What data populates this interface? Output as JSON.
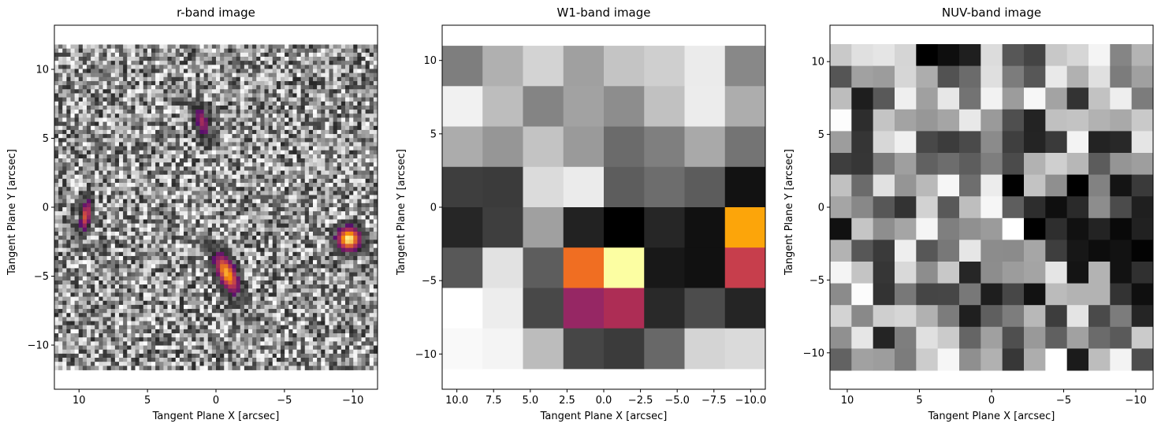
{
  "chart_data": [
    {
      "type": "heatmap",
      "title": "r-band image",
      "xlabel": "Tangent Plane X [arcsec]",
      "ylabel": "Tangent Plane Y [arcsec]",
      "x_ticks": [
        10,
        5,
        0,
        -5,
        -10
      ],
      "y_ticks": [
        10,
        5,
        0,
        -5,
        -10
      ],
      "xlim": [
        11.8,
        -11.8
      ],
      "ylim": [
        -13.2,
        13.2
      ],
      "image_extent": {
        "x": [
          11.8,
          -11.8
        ],
        "y": [
          -11.8,
          11.8
        ]
      },
      "grid": false,
      "background": "grayscale noise",
      "colormap_sources": "inferno",
      "sources": [
        {
          "x": 9.5,
          "y": -0.6,
          "label": "elongated source (left)"
        },
        {
          "x": 1.0,
          "y": 6.2,
          "label": "faint source (top)"
        },
        {
          "x": -0.8,
          "y": -4.8,
          "label": "elongated source (center)"
        },
        {
          "x": -9.7,
          "y": -2.3,
          "label": "bright compact source (right)"
        }
      ]
    },
    {
      "type": "heatmap",
      "title": "W1-band image",
      "xlabel": "Tangent Plane X [arcsec]",
      "ylabel": "Tangent Plane Y [arcsec]",
      "x_ticks": [
        "10.0",
        "7.5",
        "5.0",
        "2.5",
        "0.0",
        "−2.5",
        "−5.0",
        "−7.5",
        "−10.0"
      ],
      "y_ticks": [
        10,
        5,
        0,
        -5,
        -10
      ],
      "xlim": [
        11,
        -11
      ],
      "ylim": [
        -12.4,
        12.4
      ],
      "image_extent": {
        "x": [
          11,
          -11
        ],
        "y": [
          -11,
          11
        ]
      },
      "grid": false,
      "colors": [
        [
          "#7e7e7e",
          "#b0b0b0",
          "#d3d3d3",
          "#a0a0a0",
          "#c4c4c4",
          "#cfcfcf",
          "#ebebeb",
          "#888888"
        ],
        [
          "#f1f1f1",
          "#bdbdbd",
          "#848484",
          "#a2a2a2",
          "#8d8d8d",
          "#c1c1c1",
          "#ececec",
          "#adadad"
        ],
        [
          "#acacac",
          "#969696",
          "#c3c3c3",
          "#9a9a9a",
          "#6b6b6b",
          "#7f7f7f",
          "#a9a9a9",
          "#747474"
        ],
        [
          "#3e3e3e",
          "#3b3b3b",
          "#dbdbdb",
          "#ebebeb",
          "#5d5d5d",
          "#6d6d6d",
          "#5c5c5c",
          "#121212"
        ],
        [
          "#262626",
          "#3e3e3e",
          "#a0a0a0",
          "#222222",
          "#000000",
          "#262626",
          "#111111",
          "#fca50a"
        ],
        [
          "#585858",
          "#e2e2e2",
          "#5d5d5d",
          "#f06e22",
          "#fcfea2",
          "#181818",
          "#111111",
          "#c73e4c"
        ],
        [
          "#ffffff",
          "#ededed",
          "#484848",
          "#962764",
          "#ad2d55",
          "#292929",
          "#4c4c4c",
          "#252525"
        ],
        [
          "#f9f9f9",
          "#f4f4f4",
          "#bcbcbc",
          "#464646",
          "#3b3b3b",
          "#686868",
          "#d4d4d4",
          "#dadada"
        ]
      ]
    },
    {
      "type": "heatmap",
      "title": "NUV-band image",
      "xlabel": "Tangent Plane X [arcsec]",
      "ylabel": "Tangent Plane Y [arcsec]",
      "x_ticks": [
        10,
        5,
        0,
        -5,
        -10
      ],
      "y_ticks": [
        10,
        5,
        0,
        -5,
        -10
      ],
      "xlim": [
        11.2,
        -11.2
      ],
      "ylim": [
        -12.5,
        12.5
      ],
      "image_extent": {
        "x": [
          11.2,
          -11.2
        ],
        "y": [
          -11.2,
          11.2
        ]
      },
      "grid": false,
      "colors": [
        [
          "#c9c9c9",
          "#e0e0e0",
          "#e5e5e5",
          "#d5d5d5",
          "#000000",
          "#0e0e0e",
          "#1f1f1f",
          "#dcdcdc",
          "#575757",
          "#444444",
          "#c8c8c8",
          "#d6d6d6",
          "#f4f4f4",
          "#858585",
          "#b4b4b4"
        ],
        [
          "#555555",
          "#a1a1a1",
          "#9c9c9c",
          "#d6d6d6",
          "#adadad",
          "#525252",
          "#6b6b6b",
          "#dfdfdf",
          "#7c7c7c",
          "#575757",
          "#e9e9e9",
          "#b1b1b1",
          "#e0e0e0",
          "#7c7c7c",
          "#a0a0a0"
        ],
        [
          "#bdbdbd",
          "#1e1e1e",
          "#595959",
          "#efefef",
          "#a0a0a0",
          "#e7e7e7",
          "#737373",
          "#f2f2f2",
          "#9c9c9c",
          "#f7f7f7",
          "#a3a3a3",
          "#333333",
          "#c2c2c2",
          "#eeeeee",
          "#7c7c7c"
        ],
        [
          "#fdfdfd",
          "#2d2d2d",
          "#c4c4c4",
          "#a3a3a3",
          "#979797",
          "#a5a5a5",
          "#e8e8e8",
          "#9a9a9a",
          "#4f4f4f",
          "#232323",
          "#c0c0c0",
          "#c3c3c3",
          "#b2b2b2",
          "#a9a9a9",
          "#c9c9c9"
        ],
        [
          "#9d9d9d",
          "#353535",
          "#d7d7d7",
          "#f0f0f0",
          "#484848",
          "#3c3c3c",
          "#4a4a4a",
          "#8b8b8b",
          "#3f3f3f",
          "#242424",
          "#3a3a3a",
          "#f3f3f3",
          "#232323",
          "#282828",
          "#e5e5e5"
        ],
        [
          "#3e3e3e",
          "#363636",
          "#7b7b7b",
          "#9f9f9f",
          "#616161",
          "#6d6d6d",
          "#5d5d5d",
          "#7e7e7e",
          "#4b4b4b",
          "#b2b2b2",
          "#cfcfcf",
          "#b7b7b7",
          "#5c5c5c",
          "#959595",
          "#9e9e9e"
        ],
        [
          "#c1c1c1",
          "#6b6b6b",
          "#e1e1e1",
          "#959595",
          "#b9b9b9",
          "#f6f6f6",
          "#6e6e6e",
          "#ececec",
          "#010101",
          "#c3c3c3",
          "#8f8f8f",
          "#000000",
          "#828282",
          "#141414",
          "#3a3a3a"
        ],
        [
          "#a5a5a5",
          "#888888",
          "#575757",
          "#333333",
          "#d2d2d2",
          "#595959",
          "#bebebe",
          "#f6f6f6",
          "#5e5e5e",
          "#2d2d2d",
          "#0f0f0f",
          "#2a2a2a",
          "#8d8d8d",
          "#4b4b4b",
          "#1f1f1f"
        ],
        [
          "#111111",
          "#c5c5c5",
          "#8e8e8e",
          "#a5a5a5",
          "#f5f5f5",
          "#7f7f7f",
          "#909090",
          "#9b9b9b",
          "#ffffff",
          "#000000",
          "#2e2e2e",
          "#111111",
          "#232323",
          "#090909",
          "#212121"
        ],
        [
          "#b3b3b3",
          "#575757",
          "#3a3a3a",
          "#eeeeee",
          "#575757",
          "#787878",
          "#e6e6e6",
          "#8c8c8c",
          "#8b8b8b",
          "#a6a6a6",
          "#3e3e3e",
          "#171717",
          "#0d0d0d",
          "#121212",
          "#030303"
        ],
        [
          "#f4f4f4",
          "#c4c4c4",
          "#363636",
          "#d9d9d9",
          "#8d8d8d",
          "#c8c8c8",
          "#262626",
          "#8d8d8d",
          "#9c9c9c",
          "#a4a4a4",
          "#e5e5e5",
          "#141414",
          "#b3b3b3",
          "#121212",
          "#303030"
        ],
        [
          "#8b8b8b",
          "#fcfcfc",
          "#333333",
          "#787878",
          "#454545",
          "#464646",
          "#787878",
          "#1e1e1e",
          "#474747",
          "#121212",
          "#bbbbbb",
          "#b3b3b3",
          "#b3b3b3",
          "#333333",
          "#0f0f0f"
        ],
        [
          "#d3d3d3",
          "#898989",
          "#cfcfcf",
          "#d6d6d6",
          "#b1b1b1",
          "#7c7c7c",
          "#1f1f1f",
          "#5f5f5f",
          "#7d7d7d",
          "#b8b8b8",
          "#3d3d3d",
          "#e4e4e4",
          "#4a4a4a",
          "#7c7c7c",
          "#252525"
        ],
        [
          "#909090",
          "#e6e6e6",
          "#242424",
          "#7e7e7e",
          "#e0e0e0",
          "#cbcbcb",
          "#656565",
          "#a0a0a0",
          "#4f4f4f",
          "#999999",
          "#606060",
          "#a1a1a1",
          "#6b6b6b",
          "#5a5a5a",
          "#cbcbcb"
        ],
        [
          "#626262",
          "#a1a1a1",
          "#9d9d9d",
          "#7c7c7c",
          "#cccccc",
          "#f6f6f6",
          "#8f8f8f",
          "#b1b1b1",
          "#373737",
          "#adadad",
          "#ffffff",
          "#1b1b1b",
          "#bdbdbd",
          "#f3f3f3",
          "#4d4d4d"
        ]
      ]
    }
  ]
}
